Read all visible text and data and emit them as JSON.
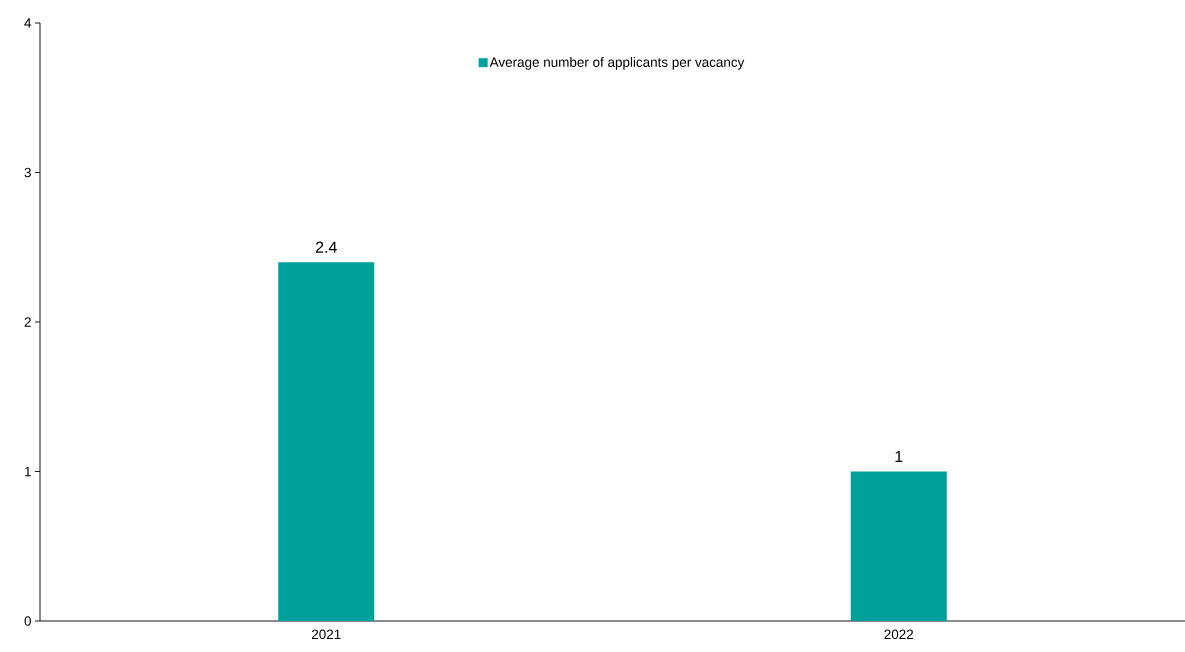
{
  "chart_data": {
    "type": "bar",
    "categories": [
      "2021",
      "2022"
    ],
    "series": [
      {
        "name": "Average number of applicants per vacancy",
        "color": "#00a19a",
        "values": [
          2.4,
          1
        ]
      }
    ],
    "ylim": [
      0,
      4
    ],
    "yticks": [
      0,
      1,
      2,
      3,
      4
    ],
    "data_labels": true,
    "legend": "top",
    "grid": false
  }
}
